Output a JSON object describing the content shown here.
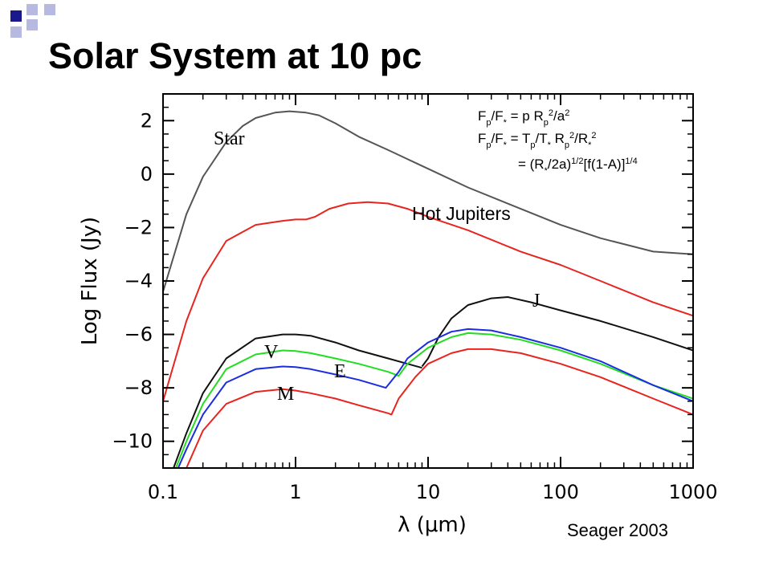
{
  "slide": {
    "title": "Solar System at 10 pc",
    "credit": "Seager 2003"
  },
  "equations": {
    "line1": {
      "seg1": "F",
      "sub1": "p",
      "seg2": "/F",
      "sub2": "*",
      "seg3": " = p R",
      "sub3": "p",
      "sup3": "2",
      "seg4": "/a",
      "sup4": "2"
    },
    "line2": {
      "seg1": "F",
      "sub1": "p",
      "seg2": "/F",
      "sub2": "*",
      "seg3": " = T",
      "sub3": "p",
      "seg4": "/T",
      "sub4": "*",
      "seg5": " R",
      "sub5": "p",
      "sup5": "2",
      "seg6": "/R",
      "sub6": "*",
      "sup6": "2"
    },
    "line3": {
      "seg1": " = (R",
      "sub1": "*",
      "seg2": "/2a)",
      "sup2": "1/2",
      "seg3": "[f(1-A)]",
      "sup3": "1/4"
    }
  },
  "colors": {
    "star": "#555555",
    "hot_jupiters": "#e8241f",
    "jupiter": "#111111",
    "venus": "#111111",
    "earth_green": "#22dd22",
    "earth_blue": "#1a2ee0",
    "mars": "#e8241f",
    "deco_dark": "#1a1a8c",
    "deco_light": "#b7b9e0"
  },
  "chart_data": {
    "type": "line",
    "xscale": "log",
    "xlim": [
      0.1,
      1000
    ],
    "ylim": [
      -11,
      3
    ],
    "xlabel": "λ (μm)",
    "ylabel": "Log Flux (Jy)",
    "xticks": [
      0.1,
      1,
      10,
      100,
      1000
    ],
    "xtick_labels": [
      "0.1",
      "1",
      "10",
      "100",
      "1000"
    ],
    "yticks": [
      2,
      0,
      -2,
      -4,
      -6,
      -8,
      -10
    ],
    "ytick_labels": [
      "2",
      "0",
      "−2",
      "−4",
      "−6",
      "−8",
      "−10"
    ],
    "series": [
      {
        "key": "star",
        "label": "Star",
        "color_key": "star",
        "x": [
          0.1,
          0.15,
          0.2,
          0.3,
          0.4,
          0.5,
          0.7,
          0.9,
          1.2,
          1.5,
          2,
          3,
          5,
          10,
          20,
          50,
          100,
          200,
          500,
          1000
        ],
        "y": [
          -4.4,
          -1.5,
          -0.1,
          1.2,
          1.8,
          2.1,
          2.3,
          2.35,
          2.3,
          2.2,
          1.9,
          1.4,
          0.9,
          0.2,
          -0.5,
          -1.3,
          -1.9,
          -2.4,
          -2.9,
          -3.0
        ]
      },
      {
        "key": "hot_jupiters",
        "label": "Hot Jupiters",
        "color_key": "hot_jupiters",
        "x": [
          0.1,
          0.15,
          0.2,
          0.3,
          0.5,
          0.8,
          1.0,
          1.2,
          1.4,
          1.8,
          2.5,
          3.5,
          5,
          7,
          10,
          20,
          50,
          100,
          200,
          500,
          1000
        ],
        "y": [
          -8.5,
          -5.5,
          -3.9,
          -2.5,
          -1.9,
          -1.75,
          -1.7,
          -1.7,
          -1.6,
          -1.3,
          -1.1,
          -1.05,
          -1.1,
          -1.3,
          -1.6,
          -2.1,
          -2.9,
          -3.4,
          -4.0,
          -4.8,
          -5.3
        ]
      },
      {
        "key": "jupiter",
        "label": "J",
        "color_key": "jupiter",
        "x": [
          9,
          10,
          12,
          15,
          20,
          30,
          40,
          60,
          100,
          200,
          500,
          1000
        ],
        "y": [
          -7.2,
          -6.9,
          -6.1,
          -5.4,
          -4.9,
          -4.65,
          -4.6,
          -4.8,
          -5.1,
          -5.5,
          -6.1,
          -6.6
        ]
      },
      {
        "key": "venus",
        "label": "V",
        "color_key": "venus",
        "x": [
          0.12,
          0.15,
          0.2,
          0.3,
          0.5,
          0.8,
          1.0,
          1.3,
          2,
          3,
          5,
          7,
          9
        ],
        "y": [
          -11,
          -9.7,
          -8.2,
          -6.9,
          -6.15,
          -6.0,
          -6.0,
          -6.05,
          -6.3,
          -6.6,
          -6.9,
          -7.1,
          -7.25
        ]
      },
      {
        "key": "earth_green",
        "label": "E",
        "color_key": "earth_green",
        "x": [
          0.125,
          0.15,
          0.2,
          0.3,
          0.5,
          0.8,
          1.0,
          1.3,
          2,
          3,
          5,
          6,
          7,
          10,
          15,
          20,
          30,
          50,
          100,
          200,
          500,
          1000
        ],
        "y": [
          -11,
          -10.0,
          -8.6,
          -7.3,
          -6.75,
          -6.6,
          -6.62,
          -6.7,
          -6.9,
          -7.1,
          -7.4,
          -7.55,
          -7.1,
          -6.5,
          -6.1,
          -5.95,
          -6.0,
          -6.2,
          -6.6,
          -7.1,
          -7.9,
          -8.4
        ]
      },
      {
        "key": "earth_blue",
        "label": "",
        "color_key": "earth_blue",
        "x": [
          0.13,
          0.15,
          0.2,
          0.3,
          0.5,
          0.8,
          1.0,
          1.3,
          2,
          3,
          4.8,
          6,
          7,
          10,
          15,
          20,
          30,
          50,
          100,
          200,
          500,
          1000
        ],
        "y": [
          -11,
          -10.3,
          -9.0,
          -7.8,
          -7.3,
          -7.2,
          -7.22,
          -7.3,
          -7.5,
          -7.7,
          -8.0,
          -7.4,
          -6.9,
          -6.3,
          -5.9,
          -5.8,
          -5.85,
          -6.1,
          -6.5,
          -7.0,
          -7.9,
          -8.5
        ]
      },
      {
        "key": "mars",
        "label": "M",
        "color_key": "mars",
        "x": [
          0.15,
          0.2,
          0.3,
          0.5,
          0.8,
          1.0,
          1.3,
          2,
          3,
          5,
          5.3,
          6,
          8,
          10,
          15,
          20,
          30,
          50,
          100,
          200,
          500,
          1000
        ],
        "y": [
          -11,
          -9.6,
          -8.6,
          -8.15,
          -8.05,
          -8.1,
          -8.2,
          -8.4,
          -8.65,
          -8.95,
          -9.0,
          -8.4,
          -7.6,
          -7.1,
          -6.7,
          -6.55,
          -6.55,
          -6.7,
          -7.1,
          -7.6,
          -8.4,
          -9.0
        ]
      }
    ]
  }
}
